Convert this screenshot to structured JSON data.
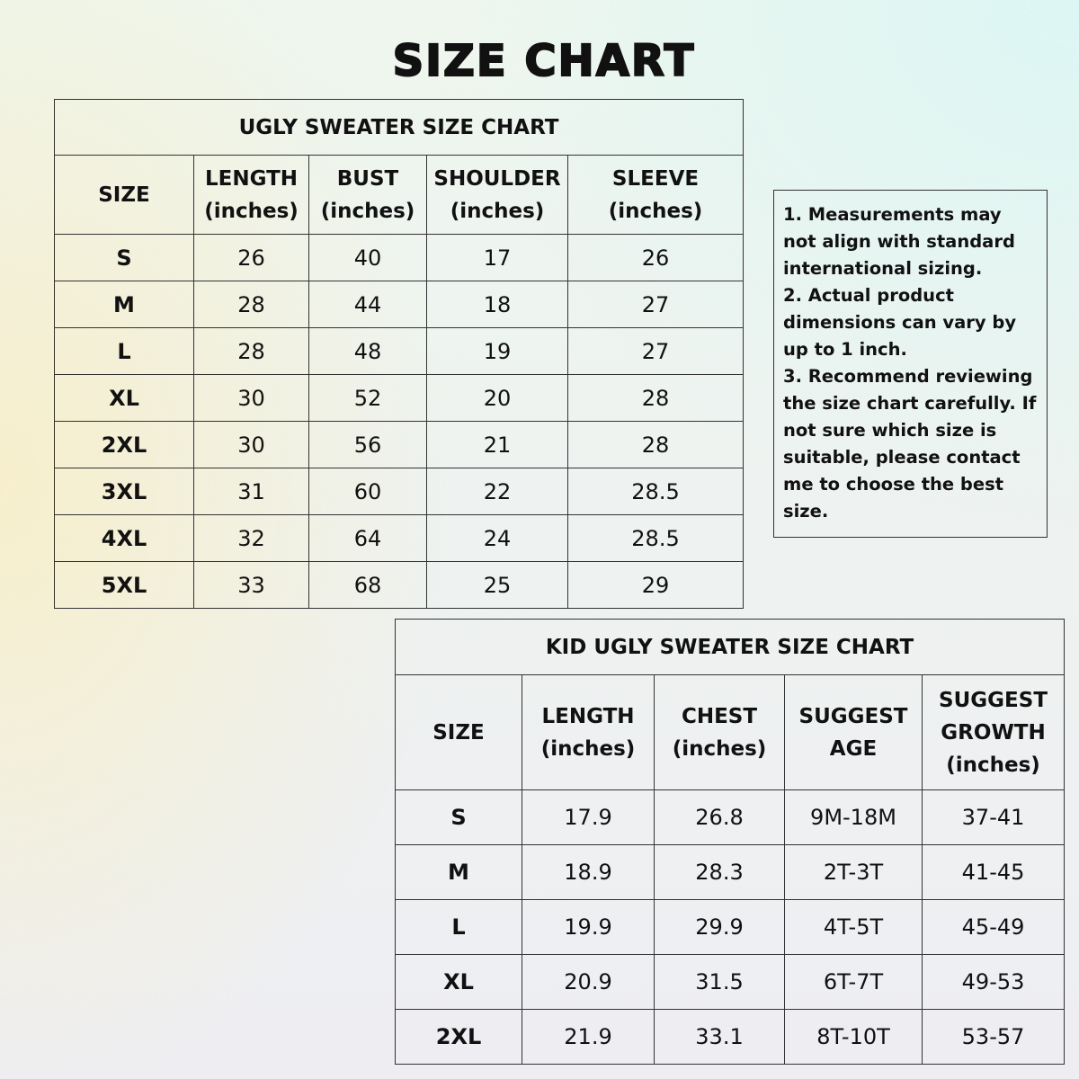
{
  "title": "SIZE CHART",
  "adult": {
    "caption": "UGLY SWEATER SIZE CHART",
    "headers": [
      [
        "SIZE",
        ""
      ],
      [
        "LENGTH",
        "(inches)"
      ],
      [
        "BUST",
        "(inches)"
      ],
      [
        "SHOULDER",
        "(inches)"
      ],
      [
        "SLEEVE",
        "(inches)"
      ]
    ],
    "rows": [
      [
        "S",
        "26",
        "40",
        "17",
        "26"
      ],
      [
        "M",
        "28",
        "44",
        "18",
        "27"
      ],
      [
        "L",
        "28",
        "48",
        "19",
        "27"
      ],
      [
        "XL",
        "30",
        "52",
        "20",
        "28"
      ],
      [
        "2XL",
        "30",
        "56",
        "21",
        "28"
      ],
      [
        "3XL",
        "31",
        "60",
        "22",
        "28.5"
      ],
      [
        "4XL",
        "32",
        "64",
        "24",
        "28.5"
      ],
      [
        "5XL",
        "33",
        "68",
        "25",
        "29"
      ]
    ]
  },
  "notes": [
    "1. Measurements may not align with standard international sizing.",
    "2. Actual product dimensions can vary by up to 1 inch.",
    "3. Recommend reviewing the size chart carefully. If not sure which size is suitable, please contact me to choose the best size."
  ],
  "kid": {
    "caption": "KID UGLY SWEATER SIZE CHART",
    "headers": [
      [
        "SIZE",
        "",
        ""
      ],
      [
        "LENGTH",
        "(inches)",
        ""
      ],
      [
        "CHEST",
        "(inches)",
        ""
      ],
      [
        "SUGGEST",
        "AGE",
        ""
      ],
      [
        "SUGGEST",
        "GROWTH",
        "(inches)"
      ]
    ],
    "rows": [
      [
        "S",
        "17.9",
        "26.8",
        "9M-18M",
        "37-41"
      ],
      [
        "M",
        "18.9",
        "28.3",
        "2T-3T",
        "41-45"
      ],
      [
        "L",
        "19.9",
        "29.9",
        "4T-5T",
        "45-49"
      ],
      [
        "XL",
        "20.9",
        "31.5",
        "6T-7T",
        "49-53"
      ],
      [
        "2XL",
        "21.9",
        "33.1",
        "8T-10T",
        "53-57"
      ]
    ]
  }
}
